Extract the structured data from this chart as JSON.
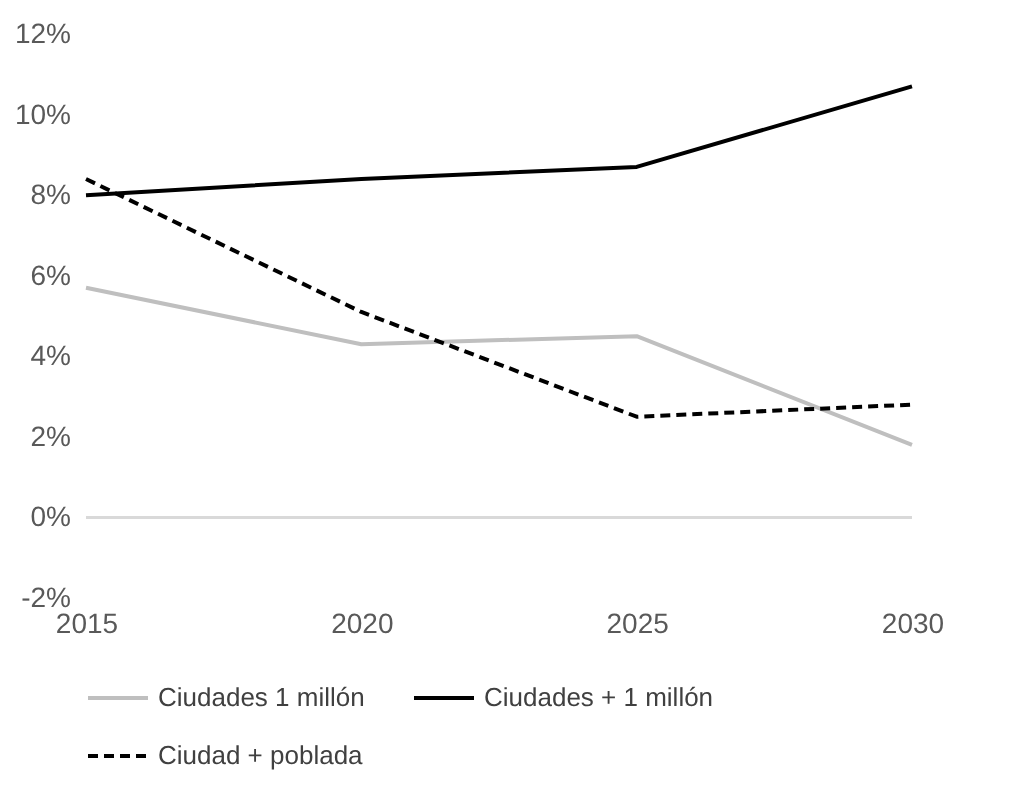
{
  "chart_data": {
    "type": "line",
    "x": [
      2015,
      2020,
      2025,
      2030
    ],
    "xlim": [
      2015,
      2030
    ],
    "xticks": [
      2015,
      2020,
      2025,
      2030
    ],
    "ylim": [
      -2,
      12
    ],
    "yticks": [
      {
        "value": -2,
        "label": "-2%"
      },
      {
        "value": 0,
        "label": "0%"
      },
      {
        "value": 2,
        "label": "2%"
      },
      {
        "value": 4,
        "label": "4%"
      },
      {
        "value": 6,
        "label": "6%"
      },
      {
        "value": 8,
        "label": "8%"
      },
      {
        "value": 10,
        "label": "10%"
      },
      {
        "value": 12,
        "label": "12%"
      }
    ],
    "series": [
      {
        "name": "Ciudades 1 millón",
        "color": "#bfbfbf",
        "values": [
          5.7,
          4.3,
          4.5,
          1.8
        ],
        "line_style": "solid"
      },
      {
        "name": "Ciudades + 1 millón",
        "color": "#000000",
        "values": [
          8.0,
          8.4,
          8.7,
          10.7
        ],
        "line_style": "solid"
      },
      {
        "name": "Ciudad + poblada",
        "color": "#000000",
        "values": [
          8.4,
          5.1,
          2.5,
          2.8
        ],
        "line_style": "dashed"
      }
    ],
    "ref_lines": [
      {
        "axis": "y",
        "value": 0,
        "color": "#d9d9d9"
      }
    ],
    "grid": false,
    "legend": "bottom",
    "marker": "none"
  }
}
